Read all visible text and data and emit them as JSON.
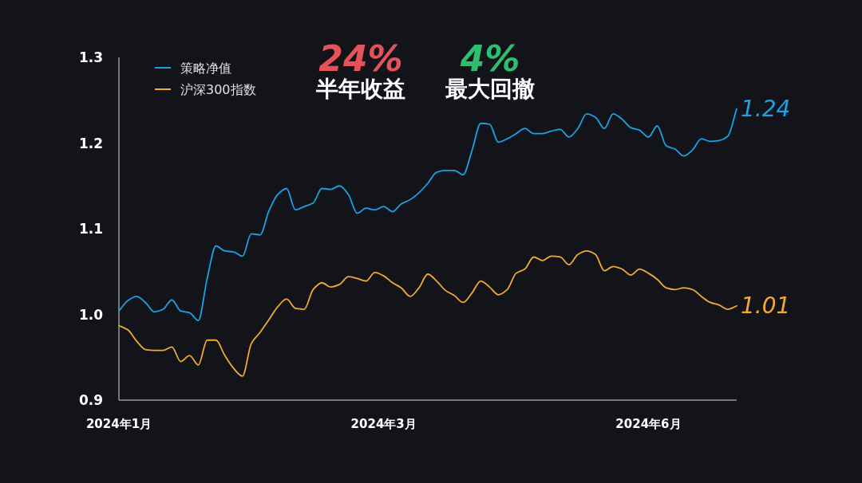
{
  "chart_data": {
    "type": "line",
    "categories": [
      "2024年1月",
      null,
      null,
      null,
      null,
      null,
      null,
      null,
      null,
      null,
      null,
      null,
      null,
      null,
      null,
      null,
      null,
      null,
      null,
      null,
      null,
      null,
      null,
      null,
      null,
      null,
      null,
      null,
      null,
      null,
      "2024年3月",
      null,
      null,
      null,
      null,
      null,
      null,
      null,
      null,
      null,
      null,
      null,
      null,
      null,
      null,
      null,
      null,
      null,
      null,
      null,
      null,
      null,
      null,
      null,
      null,
      null,
      null,
      null,
      null,
      null,
      "2024年6月",
      null,
      null,
      null,
      null,
      null,
      null,
      null,
      null,
      null,
      null
    ],
    "series": [
      {
        "name": "策略净值",
        "color": "#1ba1e6",
        "values": [
          1.004,
          1.016,
          1.021,
          1.014,
          1.003,
          1.006,
          1.017,
          1.004,
          1.002,
          0.993,
          1.042,
          1.08,
          1.074,
          1.073,
          1.068,
          1.094,
          1.093,
          1.121,
          1.14,
          1.147,
          1.122,
          1.126,
          1.13,
          1.147,
          1.146,
          1.15,
          1.14,
          1.118,
          1.124,
          1.122,
          1.126,
          1.12,
          1.129,
          1.134,
          1.142,
          1.153,
          1.166,
          1.168,
          1.168,
          1.163,
          1.191,
          1.223,
          1.222,
          1.201,
          1.205,
          1.211,
          1.217,
          1.211,
          1.211,
          1.214,
          1.216,
          1.207,
          1.217,
          1.234,
          1.23,
          1.217,
          1.234,
          1.228,
          1.218,
          1.215,
          1.207,
          1.22,
          1.197,
          1.193,
          1.185,
          1.192,
          1.205,
          1.202,
          1.203,
          1.208,
          1.24
        ],
        "value_labels": [
          null,
          null,
          null,
          null,
          null,
          null,
          null,
          null,
          null,
          null,
          null,
          null,
          null,
          null,
          null,
          null,
          null,
          null,
          null,
          null,
          null,
          null,
          null,
          null,
          null,
          null,
          null,
          null,
          null,
          null,
          null,
          null,
          null,
          null,
          null,
          null,
          null,
          null,
          null,
          null,
          null,
          null,
          null,
          null,
          null,
          null,
          null,
          null,
          null,
          null,
          null,
          null,
          null,
          null,
          null,
          null,
          null,
          null,
          null,
          null,
          null,
          null,
          null,
          null,
          null,
          null,
          null,
          null,
          null,
          null,
          "1.24"
        ]
      },
      {
        "name": "沪深300指数",
        "color": "#f2aa30",
        "values": [
          0.987,
          0.982,
          0.969,
          0.959,
          0.958,
          0.958,
          0.962,
          0.945,
          0.952,
          0.941,
          0.97,
          0.97,
          0.952,
          0.937,
          0.928,
          0.966,
          0.979,
          0.994,
          1.009,
          1.018,
          1.007,
          1.006,
          1.029,
          1.037,
          1.032,
          1.035,
          1.044,
          1.042,
          1.039,
          1.049,
          1.045,
          1.037,
          1.031,
          1.021,
          1.031,
          1.047,
          1.039,
          1.028,
          1.022,
          1.014,
          1.025,
          1.039,
          1.032,
          1.023,
          1.029,
          1.048,
          1.053,
          1.067,
          1.063,
          1.068,
          1.067,
          1.058,
          1.07,
          1.074,
          1.07,
          1.051,
          1.056,
          1.053,
          1.046,
          1.053,
          1.048,
          1.041,
          1.031,
          1.029,
          1.031,
          1.029,
          1.021,
          1.014,
          1.011,
          1.006,
          1.01
        ],
        "value_labels": [
          null,
          null,
          null,
          null,
          null,
          null,
          null,
          null,
          null,
          null,
          null,
          null,
          null,
          null,
          null,
          null,
          null,
          null,
          null,
          null,
          null,
          null,
          null,
          null,
          null,
          null,
          null,
          null,
          null,
          null,
          null,
          null,
          null,
          null,
          null,
          null,
          null,
          null,
          null,
          null,
          null,
          null,
          null,
          null,
          null,
          null,
          null,
          null,
          null,
          null,
          null,
          null,
          null,
          null,
          null,
          null,
          null,
          null,
          null,
          null,
          null,
          null,
          null,
          null,
          null,
          null,
          null,
          null,
          null,
          null,
          "1.01"
        ]
      }
    ],
    "ylim": [
      0.9,
      1.3
    ],
    "yticks": [
      0.9,
      {
        "value": 1,
        "label": "1.0"
      },
      1.1,
      1.2,
      1.3
    ],
    "legend": "top left",
    "annotations": [
      "24%",
      "半年收益",
      "4%",
      "最大回撤"
    ]
  }
}
